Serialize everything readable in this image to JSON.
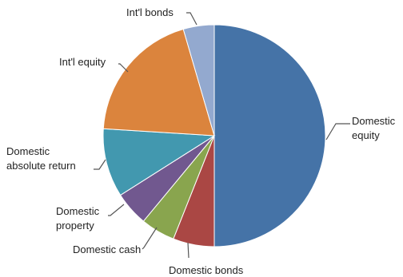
{
  "chart_data": {
    "type": "pie",
    "title": "",
    "start_angle_deg": 0,
    "direction": "clockwise",
    "legend": "none",
    "slices": [
      {
        "label": "Domestic equity",
        "label_lines": [
          "Domestic",
          "equity"
        ],
        "value": 50.0,
        "color": "#4573a7"
      },
      {
        "label": "Domestic bonds",
        "label_lines": [
          "Domestic bonds"
        ],
        "value": 6.0,
        "color": "#aa4744"
      },
      {
        "label": "Domestic cash",
        "label_lines": [
          "Domestic cash"
        ],
        "value": 5.0,
        "color": "#89a54e"
      },
      {
        "label": "Domestic property",
        "label_lines": [
          "Domestic",
          "property"
        ],
        "value": 5.0,
        "color": "#71588f"
      },
      {
        "label": "Domestic absolute return",
        "label_lines": [
          "Domestic",
          "absolute return"
        ],
        "value": 10.0,
        "color": "#4298af"
      },
      {
        "label": "Int'l equity",
        "label_lines": [
          "Int'l equity"
        ],
        "value": 19.5,
        "color": "#db843d"
      },
      {
        "label": "Int'l bonds",
        "label_lines": [
          "Int'l bonds"
        ],
        "value": 4.5,
        "color": "#93a9cf"
      }
    ]
  }
}
